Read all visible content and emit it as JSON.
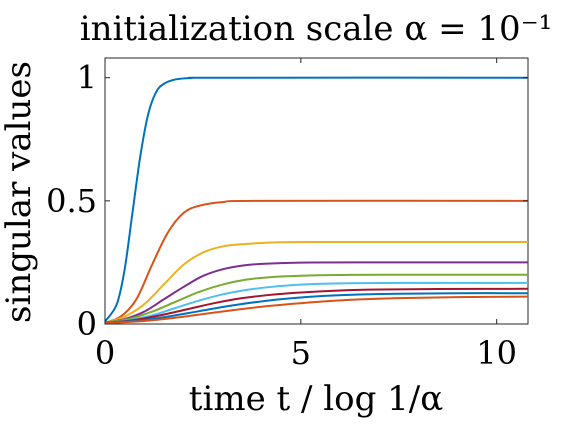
{
  "chart_data": {
    "type": "line",
    "title": "initialization scale α = 10⁻¹",
    "xlabel": "time t / log 1/α",
    "ylabel": "singular values",
    "xlim": [
      0,
      10.8
    ],
    "ylim": [
      0,
      1.08
    ],
    "x_ticks": [
      0,
      5,
      10
    ],
    "x_tick_labels": [
      "0",
      "5",
      "10"
    ],
    "y_ticks": [
      0,
      0.5,
      1
    ],
    "y_tick_labels": [
      "0",
      "0.5",
      "1"
    ],
    "grid": false,
    "legend": "none",
    "series": [
      {
        "color": "#0072BD",
        "x": [
          0,
          0.3,
          0.5,
          0.7,
          0.9,
          1.1,
          1.3,
          1.5,
          1.8,
          2.2,
          3,
          10.8
        ],
        "y": [
          0.01,
          0.08,
          0.22,
          0.45,
          0.68,
          0.85,
          0.94,
          0.975,
          0.993,
          0.999,
          1.0,
          1.0
        ]
      },
      {
        "color": "#D95319",
        "x": [
          0,
          0.4,
          0.8,
          1.2,
          1.6,
          2.0,
          2.4,
          3.0,
          4.0,
          10.8
        ],
        "y": [
          0.005,
          0.03,
          0.1,
          0.24,
          0.37,
          0.45,
          0.48,
          0.495,
          0.5,
          0.5
        ]
      },
      {
        "color": "#EDB120",
        "x": [
          0,
          0.5,
          1.0,
          1.5,
          2.0,
          2.5,
          3.0,
          3.6,
          4.5,
          6.0,
          10.8
        ],
        "y": [
          0.005,
          0.03,
          0.08,
          0.16,
          0.24,
          0.29,
          0.315,
          0.325,
          0.332,
          0.333,
          0.333
        ]
      },
      {
        "color": "#7E2F8E",
        "x": [
          0,
          0.5,
          1.0,
          1.5,
          2.0,
          2.5,
          3.0,
          3.5,
          4.0,
          5.0,
          6.5,
          10.8
        ],
        "y": [
          0.005,
          0.02,
          0.05,
          0.1,
          0.15,
          0.195,
          0.222,
          0.237,
          0.244,
          0.249,
          0.25,
          0.25
        ]
      },
      {
        "color": "#77AC30",
        "x": [
          0,
          0.6,
          1.2,
          1.8,
          2.4,
          3.0,
          3.6,
          4.2,
          5.0,
          6.0,
          7.5,
          10.8
        ],
        "y": [
          0.005,
          0.02,
          0.05,
          0.09,
          0.13,
          0.16,
          0.18,
          0.19,
          0.196,
          0.199,
          0.2,
          0.2
        ]
      },
      {
        "color": "#4DBEEE",
        "x": [
          0,
          0.6,
          1.2,
          1.8,
          2.4,
          3.0,
          3.6,
          4.2,
          5.0,
          6.0,
          7.5,
          10.8
        ],
        "y": [
          0.005,
          0.015,
          0.035,
          0.065,
          0.095,
          0.12,
          0.138,
          0.15,
          0.16,
          0.165,
          0.167,
          0.167
        ]
      },
      {
        "color": "#A2142F",
        "x": [
          0,
          0.7,
          1.4,
          2.1,
          2.8,
          3.5,
          4.2,
          5.0,
          6.0,
          7.0,
          8.5,
          10.8
        ],
        "y": [
          0.005,
          0.015,
          0.035,
          0.06,
          0.085,
          0.105,
          0.118,
          0.128,
          0.136,
          0.14,
          0.142,
          0.143
        ]
      },
      {
        "color": "#0072BD",
        "x": [
          0,
          0.8,
          1.6,
          2.4,
          3.2,
          4.0,
          4.8,
          5.6,
          6.5,
          7.5,
          9.0,
          10.8
        ],
        "y": [
          0.005,
          0.013,
          0.03,
          0.052,
          0.074,
          0.092,
          0.105,
          0.114,
          0.12,
          0.123,
          0.125,
          0.125
        ]
      },
      {
        "color": "#D95319",
        "x": [
          0,
          0.8,
          1.6,
          2.4,
          3.2,
          4.0,
          4.8,
          5.6,
          6.5,
          7.5,
          9.0,
          10.8
        ],
        "y": [
          0.004,
          0.01,
          0.022,
          0.038,
          0.055,
          0.07,
          0.082,
          0.092,
          0.1,
          0.105,
          0.109,
          0.111
        ]
      }
    ]
  }
}
